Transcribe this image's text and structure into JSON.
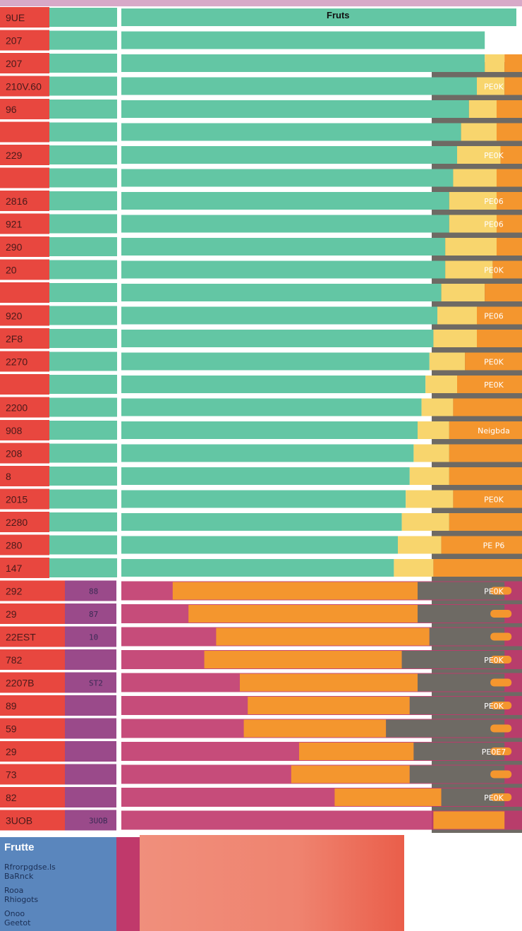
{
  "title": "Fruts",
  "colors": {
    "red": "#e8473f",
    "teal": "#63c6a4",
    "yellow": "#f8d56d",
    "orange": "#f4962e",
    "dark": "#6e6a64",
    "magenta": "#c0396b",
    "purple": "#9a4a8a",
    "blue": "#5a86bd",
    "salmon": "#ef8872"
  },
  "chart_data": {
    "type": "bar",
    "title": "Fruts",
    "orientation": "horizontal",
    "row_labels": [
      "9UE",
      "207",
      "207",
      "210V.60",
      "96",
      "",
      "229",
      "",
      "2816",
      "921",
      "290",
      "20",
      "",
      "920",
      "2F8",
      "2270",
      "",
      "2200",
      "908",
      "208",
      "8",
      "2015",
      "2280",
      "280",
      "147",
      "292",
      "29",
      "22EST",
      "782",
      "2207B",
      "89",
      "59",
      "29",
      "73",
      "82",
      "3UOB"
    ],
    "row_values": [
      "",
      "",
      "",
      "",
      "",
      "",
      "",
      "",
      "",
      "",
      "",
      "",
      "",
      "",
      "",
      "",
      "",
      "",
      "",
      "",
      "",
      "",
      "",
      "",
      "",
      "88",
      "87",
      "10",
      "",
      "ST2",
      "",
      "",
      "",
      "",
      "",
      "3UOB"
    ],
    "right_labels": [
      "",
      "",
      "",
      "PE0K",
      "",
      "",
      "PE0K",
      "",
      "PE06",
      "PE06",
      "",
      "PE0K",
      "",
      "PE06",
      "",
      "PE0K",
      "PE0K",
      "",
      "Neigbda",
      "",
      "",
      "PE0K",
      "",
      "PE P6",
      "",
      "PE0K",
      "",
      "",
      "PE0K",
      "",
      "PE0K",
      "",
      "PE0E7",
      "",
      "PE0K",
      ""
    ],
    "series": [
      {
        "values": [
          1.0,
          0.92,
          0.92,
          0.9,
          0.88,
          0.86,
          0.85,
          0.84,
          0.83,
          0.83,
          0.82,
          0.82,
          0.81,
          0.8,
          0.79,
          0.78,
          0.77,
          0.76,
          0.75,
          0.74,
          0.73,
          0.72,
          0.71,
          0.7,
          0.69,
          0.0,
          0.0,
          0.0,
          0.0,
          0.0,
          0.0,
          0.0,
          0.0,
          0.0,
          0.0,
          0.0
        ]
      },
      {
        "values": [
          0.0,
          0.0,
          0.05,
          0.07,
          0.07,
          0.09,
          0.11,
          0.11,
          0.12,
          0.12,
          0.13,
          0.12,
          0.11,
          0.1,
          0.11,
          0.09,
          0.08,
          0.08,
          0.08,
          0.09,
          0.1,
          0.12,
          0.12,
          0.11,
          0.1,
          0.0,
          0.0,
          0.0,
          0.0,
          0.0,
          0.0,
          0.0,
          0.0,
          0.0,
          0.0,
          0.0
        ]
      },
      {
        "values": [
          0.0,
          0.0,
          0.13,
          0.2,
          0.22,
          0.24,
          0.29,
          0.32,
          0.35,
          0.36,
          0.4,
          0.4,
          0.41,
          0.43,
          0.41,
          0.46,
          0.45,
          0.5,
          0.56,
          0.55,
          0.55,
          0.56,
          0.61,
          0.62,
          0.65,
          0.62,
          0.58,
          0.54,
          0.5,
          0.45,
          0.41,
          0.36,
          0.29,
          0.3,
          0.27,
          0.18
        ]
      },
      {
        "values": [
          0.0,
          0.0,
          0.0,
          0.15,
          0.15,
          0.17,
          0.19,
          0.21,
          0.23,
          0.26,
          0.24,
          0.27,
          0.27,
          0.25,
          0.22,
          0.2,
          0.22,
          0.22,
          0.25,
          0.27,
          0.24,
          0.2,
          0.27,
          0.25,
          0.3,
          0.22,
          0.22,
          0.19,
          0.26,
          0.22,
          0.24,
          0.3,
          0.23,
          0.24,
          0.16,
          0.0
        ]
      }
    ]
  },
  "legend": {
    "title": "Frutte",
    "items": [
      {
        "label": "Rfrorpgdse.ls\nBaRnck"
      },
      {
        "label": "Rooa\nRhiogots"
      },
      {
        "label": "Onoo\nGeetot"
      }
    ]
  }
}
